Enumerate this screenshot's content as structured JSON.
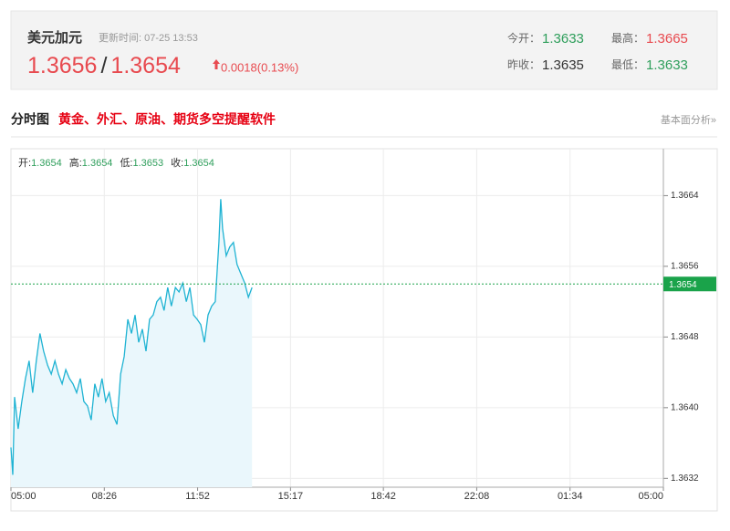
{
  "header": {
    "name": "美元加元",
    "update": "更新时间: 07-25 13:53",
    "bid": "1.3656",
    "separator": "/",
    "ask": "1.3654",
    "change": "0.0018(0.13%)",
    "stats": [
      {
        "label": "今开：",
        "value": "1.3633",
        "tone": "green"
      },
      {
        "label": "最高：",
        "value": "1.3665",
        "tone": "red"
      },
      {
        "label": "昨收：",
        "value": "1.3635",
        "tone": "dark"
      },
      {
        "label": "最低：",
        "value": "1.3633",
        "tone": "green"
      }
    ]
  },
  "section": {
    "title": "分时图",
    "ad": "黄金、外汇、原油、期货多空提醒软件",
    "link": "基本面分析»"
  },
  "chart_data": {
    "type": "line",
    "ohlc": [
      {
        "label": "开:",
        "value": 1.3654
      },
      {
        "label": "高:",
        "value": 1.3654
      },
      {
        "label": "低:",
        "value": 1.3653
      },
      {
        "label": "收:",
        "value": 1.3654
      }
    ],
    "x": [
      0,
      4,
      8,
      16,
      24,
      32,
      40,
      48,
      56,
      64,
      72,
      81,
      89,
      97,
      105,
      113,
      121,
      129,
      137,
      145,
      153,
      161,
      169,
      177,
      185,
      193,
      201,
      209,
      217,
      226,
      234,
      242,
      250,
      258,
      266,
      274,
      282,
      290,
      298,
      306,
      314,
      322,
      330,
      338,
      346,
      354,
      363,
      371,
      379,
      387,
      395,
      403,
      411,
      419,
      427,
      435,
      443,
      451,
      459,
      463,
      467,
      475,
      483,
      491,
      499,
      508,
      516,
      524,
      532
    ],
    "series": [
      {
        "name": "price",
        "color": "#1fb3d3",
        "values": [
          1.36355,
          1.36324,
          1.36412,
          1.36376,
          1.36407,
          1.36433,
          1.36453,
          1.36417,
          1.36453,
          1.36484,
          1.36464,
          1.36448,
          1.36438,
          1.36453,
          1.36438,
          1.36427,
          1.36443,
          1.36433,
          1.36427,
          1.36417,
          1.36433,
          1.36407,
          1.36402,
          1.36386,
          1.36427,
          1.36412,
          1.36433,
          1.36407,
          1.36417,
          1.36391,
          1.36381,
          1.36438,
          1.36458,
          1.365,
          1.36484,
          1.36505,
          1.36474,
          1.36489,
          1.36464,
          1.365,
          1.36505,
          1.3652,
          1.36525,
          1.3651,
          1.36536,
          1.36515,
          1.36536,
          1.36531,
          1.36541,
          1.3652,
          1.36536,
          1.36505,
          1.365,
          1.36494,
          1.36474,
          1.36505,
          1.36515,
          1.3652,
          1.36587,
          1.36636,
          1.36603,
          1.36572,
          1.36582,
          1.36587,
          1.36562,
          1.36551,
          1.36541,
          1.36525,
          1.36536
        ]
      }
    ],
    "last_price": 1.3654,
    "last_color": "#1aa34a",
    "xlim": [
      0,
      1440
    ],
    "xticks": [
      {
        "value": 0,
        "label": "05:00"
      },
      {
        "value": 206,
        "label": "08:26"
      },
      {
        "value": 412,
        "label": "11:52"
      },
      {
        "value": 617,
        "label": "15:17"
      },
      {
        "value": 822,
        "label": "18:42"
      },
      {
        "value": 1028,
        "label": "22:08"
      },
      {
        "value": 1234,
        "label": "01:34"
      },
      {
        "value": 1440,
        "label": "05:00"
      }
    ],
    "ylim": [
      1.3631,
      1.3669
    ],
    "yticks": [
      1.3664,
      1.3656,
      1.3648,
      {
        "value": 1.364,
        "label": "1.3640"
      },
      1.3632
    ],
    "grid": true
  }
}
